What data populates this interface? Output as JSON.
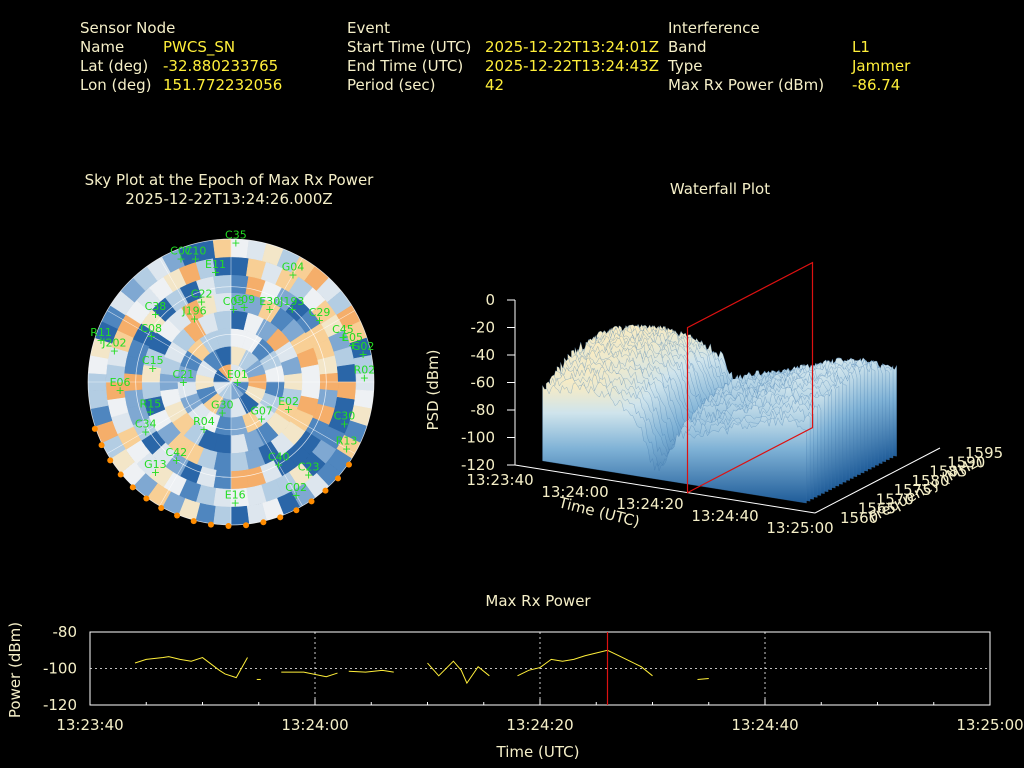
{
  "header": {
    "sensor": {
      "heading": "Sensor Node",
      "rows": [
        {
          "label": "Name",
          "value": "PWCS_SN"
        },
        {
          "label": "Lat (deg)",
          "value": "-32.880233765"
        },
        {
          "label": "Lon (deg)",
          "value": "151.772232056"
        }
      ]
    },
    "event": {
      "heading": "Event",
      "rows": [
        {
          "label": "Start Time (UTC)",
          "value": "2025-12-22T13:24:01Z"
        },
        {
          "label": "End Time (UTC)",
          "value": "2025-12-22T13:24:43Z"
        },
        {
          "label": "Period (sec)",
          "value": "42"
        }
      ]
    },
    "interference": {
      "heading": "Interference",
      "rows": [
        {
          "label": "Band",
          "value": "L1"
        },
        {
          "label": "Type",
          "value": "Jammer"
        },
        {
          "label": "Max Rx Power (dBm)",
          "value": "-86.74"
        }
      ]
    }
  },
  "skyplot": {
    "title_line1": "Sky Plot at the Epoch of Max Rx Power",
    "title_line2": "2025-12-22T13:24:26.000Z"
  },
  "waterfall": {
    "title": "Waterfall Plot",
    "zlabel": "PSD (dBm)",
    "xlabel": "Time (UTC)",
    "ylabel": "Frequency (MHz)",
    "z_ticks": [
      "0",
      "-20",
      "-40",
      "-60",
      "-80",
      "-100",
      "-120"
    ],
    "x_ticks": [
      "13:23:40",
      "13:24:00",
      "13:24:20",
      "13:24:40",
      "13:25:00"
    ],
    "y_ticks": [
      "1560",
      "1565",
      "1570",
      "1575",
      "1580",
      "1585",
      "1590",
      "1595"
    ]
  },
  "colors": {
    "background": "#000000",
    "label": "#f5efc8",
    "value": "#ffef3a",
    "sat": "#22dd22",
    "marker": "#ff8c00",
    "line": "#ffef3a",
    "cursor": "#dd1111"
  },
  "chart_data": [
    {
      "type": "scatter",
      "title": "Sky Plot at the Epoch of Max Rx Power",
      "subtitle": "2025-12-22T13:24:26.000Z",
      "satellites": [
        {
          "id": "C35",
          "az": 2,
          "el": 2
        },
        {
          "id": "G04",
          "az": 30,
          "el": 12
        },
        {
          "id": "C07",
          "az": 338,
          "el": 6
        },
        {
          "id": "C10",
          "az": 344,
          "el": 9
        },
        {
          "id": "E11",
          "az": 352,
          "el": 20
        },
        {
          "id": "C22",
          "az": 340,
          "el": 36
        },
        {
          "id": "C09",
          "az": 10,
          "el": 42
        },
        {
          "id": "C05",
          "az": 2,
          "el": 44
        },
        {
          "id": "E30",
          "az": 28,
          "el": 38
        },
        {
          "id": "J193",
          "az": 40,
          "el": 30
        },
        {
          "id": "C29",
          "az": 55,
          "el": 22
        },
        {
          "id": "C45",
          "az": 68,
          "el": 14
        },
        {
          "id": "G02",
          "az": 78,
          "el": 5
        },
        {
          "id": "E05",
          "az": 73,
          "el": 10
        },
        {
          "id": "R02",
          "az": 88,
          "el": 6
        },
        {
          "id": "J196",
          "az": 330,
          "el": 44
        },
        {
          "id": "C38",
          "az": 312,
          "el": 26
        },
        {
          "id": "C08",
          "az": 300,
          "el": 32
        },
        {
          "id": "R11",
          "az": 288,
          "el": 4
        },
        {
          "id": "J202",
          "az": 285,
          "el": 14
        },
        {
          "id": "C15",
          "az": 280,
          "el": 40
        },
        {
          "id": "C21",
          "az": 270,
          "el": 60
        },
        {
          "id": "E06",
          "az": 266,
          "el": 20
        },
        {
          "id": "E01",
          "az": 90,
          "el": 86
        },
        {
          "id": "E02",
          "az": 115,
          "el": 50
        },
        {
          "id": "G07",
          "az": 140,
          "el": 60
        },
        {
          "id": "R15",
          "az": 250,
          "el": 36
        },
        {
          "id": "C30",
          "az": 110,
          "el": 14
        },
        {
          "id": "C40",
          "az": 150,
          "el": 30
        },
        {
          "id": "R13",
          "az": 120,
          "el": 6
        },
        {
          "id": "C23",
          "az": 140,
          "el": 14
        },
        {
          "id": "C02",
          "az": 150,
          "el": 8
        },
        {
          "id": "R04",
          "az": 210,
          "el": 56
        },
        {
          "id": "C42",
          "az": 215,
          "el": 30
        },
        {
          "id": "G13",
          "az": 220,
          "el": 16
        },
        {
          "id": "E16",
          "az": 178,
          "el": 14
        },
        {
          "id": "G30",
          "az": 196,
          "el": 70
        },
        {
          "id": "C34",
          "az": 240,
          "el": 28
        }
      ]
    },
    {
      "type": "area",
      "title": "Waterfall Plot",
      "xlabel": "Time (UTC)",
      "ylabel": "Frequency (MHz)",
      "zlabel": "PSD (dBm)",
      "xlim": [
        "13:23:40",
        "13:25:00"
      ],
      "ylim": [
        1560,
        1595
      ],
      "zlim": [
        -120,
        0
      ],
      "highlight_time": "13:24:26"
    },
    {
      "type": "line",
      "title": "Max Rx Power",
      "xlabel": "Time (UTC)",
      "ylabel": "Power (dBm)",
      "x_ticks": [
        "13:23:40",
        "13:24:00",
        "13:24:20",
        "13:24:40",
        "13:25:00"
      ],
      "y_ticks": [
        "-80",
        "-100",
        "-120"
      ],
      "xlim_sec": [
        0,
        80
      ],
      "ylim": [
        -120,
        -80
      ],
      "grid": true,
      "cursor_time_sec": 46,
      "segments": [
        [
          [
            4,
            -97
          ],
          [
            5,
            -95
          ],
          [
            6.5,
            -94
          ],
          [
            7,
            -93.5
          ],
          [
            8,
            -95
          ],
          [
            9,
            -96
          ],
          [
            10,
            -94
          ],
          [
            11.5,
            -101
          ],
          [
            12,
            -103
          ],
          [
            13,
            -105
          ],
          [
            14,
            -94
          ]
        ],
        [
          [
            15,
            -106
          ]
        ],
        [
          [
            17,
            -102
          ],
          [
            19,
            -102
          ],
          [
            21,
            -104.5
          ],
          [
            22,
            -102.5
          ]
        ],
        [
          [
            23,
            -101.5
          ],
          [
            24.5,
            -102
          ],
          [
            26,
            -101
          ],
          [
            27,
            -102
          ]
        ],
        [
          [
            30,
            -97
          ],
          [
            31,
            -104
          ],
          [
            32.3,
            -96
          ],
          [
            33,
            -101
          ],
          [
            33.5,
            -108
          ],
          [
            34.5,
            -99
          ],
          [
            35.5,
            -104
          ]
        ],
        [
          [
            38,
            -104
          ],
          [
            39,
            -101
          ],
          [
            40,
            -99.5
          ],
          [
            41,
            -95
          ],
          [
            42,
            -96
          ],
          [
            43,
            -95
          ],
          [
            44,
            -93
          ],
          [
            45,
            -91.5
          ],
          [
            46,
            -90
          ],
          [
            47,
            -93
          ],
          [
            48,
            -96
          ],
          [
            49,
            -99
          ],
          [
            50,
            -104
          ]
        ],
        [
          [
            54,
            -106
          ],
          [
            55,
            -105.5
          ]
        ]
      ]
    }
  ]
}
